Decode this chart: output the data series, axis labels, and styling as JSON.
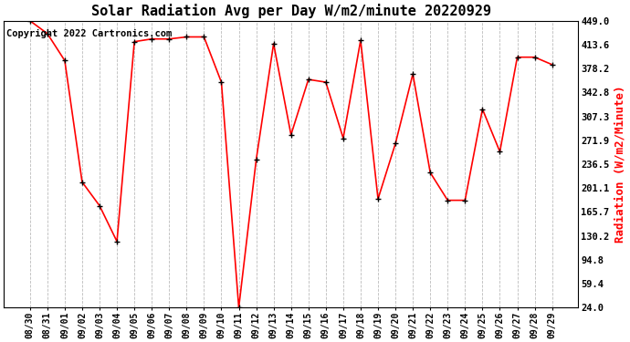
{
  "title": "Solar Radiation Avg per Day W/m2/minute 20220929",
  "ylabel": "Radiation (W/m2/Minute)",
  "copyright": "Copyright 2022 Cartronics.com",
  "dates": [
    "08/30",
    "08/31",
    "09/01",
    "09/02",
    "09/03",
    "09/04",
    "09/05",
    "09/06",
    "09/07",
    "09/08",
    "09/09",
    "09/10",
    "09/11",
    "09/12",
    "09/13",
    "09/14",
    "09/15",
    "09/16",
    "09/17",
    "09/18",
    "09/19",
    "09/20",
    "09/21",
    "09/22",
    "09/23",
    "09/24",
    "09/25",
    "09/26",
    "09/27",
    "09/28",
    "09/29"
  ],
  "values": [
    449.0,
    430.0,
    390.0,
    210.0,
    175.0,
    122.0,
    418.0,
    422.0,
    422.0,
    425.0,
    425.0,
    358.0,
    24.0,
    243.0,
    415.0,
    280.0,
    362.0,
    358.0,
    275.0,
    420.0,
    185.0,
    267.0,
    370.0,
    224.0,
    183.0,
    183.0,
    318.0,
    255.0,
    395.0,
    395.0,
    384.0
  ],
  "line_color": "red",
  "marker_color": "black",
  "background_color": "#ffffff",
  "grid_color": "#bbbbbb",
  "yticks": [
    24.0,
    59.4,
    94.8,
    130.2,
    165.7,
    201.1,
    236.5,
    271.9,
    307.3,
    342.8,
    378.2,
    413.6,
    449.0
  ],
  "ylim_min": 24.0,
  "ylim_max": 449.0,
  "title_fontsize": 11,
  "ylabel_fontsize": 9,
  "tick_fontsize": 7.5,
  "xtick_fontsize": 7,
  "copyright_fontsize": 7.5,
  "ylabel_color": "red",
  "linewidth": 1.2,
  "marker_size": 25,
  "marker_linewidth": 1.0
}
